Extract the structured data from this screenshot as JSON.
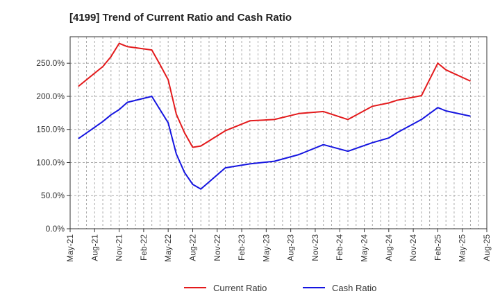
{
  "chart_data": {
    "type": "line",
    "title": "[4199]  Trend of Current Ratio and Cash Ratio",
    "xlabel": "",
    "ylabel": "",
    "ylim": [
      0,
      290
    ],
    "yticks": [
      0,
      50,
      100,
      150,
      200,
      250
    ],
    "ytick_labels": [
      "0.0%",
      "50.0%",
      "100.0%",
      "150.0%",
      "200.0%",
      "250.0%"
    ],
    "xtick_labels": [
      "May-21",
      "Aug-21",
      "Nov-21",
      "Feb-22",
      "May-22",
      "Aug-22",
      "Nov-22",
      "Feb-23",
      "May-23",
      "Aug-23",
      "Nov-23",
      "Feb-24",
      "May-24",
      "Aug-24",
      "Nov-24",
      "Feb-25",
      "May-25",
      "Aug-25"
    ],
    "x": [
      1,
      4,
      5,
      6,
      7,
      10,
      11,
      12,
      13,
      14,
      15,
      16,
      19,
      22,
      25,
      28,
      31,
      34,
      37,
      39,
      40,
      43,
      45,
      46,
      49
    ],
    "x_units": "months since May-21",
    "grid": true,
    "legend_position": "bottom",
    "series": [
      {
        "name": "Current Ratio",
        "color": "#e31a1c",
        "values": [
          215,
          245,
          260,
          280,
          275,
          270,
          248,
          225,
          173,
          145,
          123,
          125,
          148,
          163,
          165,
          174,
          177,
          165,
          185,
          190,
          194,
          201,
          250,
          240,
          223
        ]
      },
      {
        "name": "Cash Ratio",
        "color": "#1515e0",
        "values": [
          136,
          162,
          172,
          180,
          191,
          200,
          180,
          160,
          113,
          85,
          67,
          60,
          92,
          98,
          102,
          112,
          127,
          117,
          130,
          137,
          145,
          165,
          183,
          178,
          170
        ]
      }
    ]
  }
}
